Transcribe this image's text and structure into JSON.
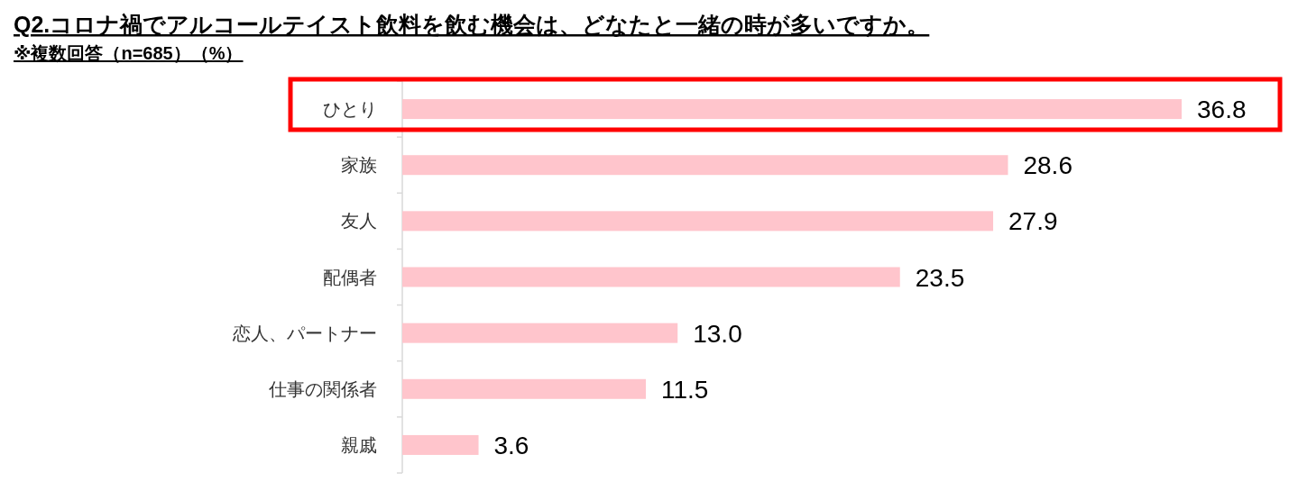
{
  "chart_data": {
    "type": "bar",
    "orientation": "horizontal",
    "title": "Q2.コロナ禍でアルコールテイスト飲料を飲む機会は、どなたと一緒の時が多いですか。",
    "subtitle": "※複数回答（n=685）（%）",
    "categories": [
      "ひとり",
      "家族",
      "友人",
      "配偶者",
      "恋人、パートナー",
      "仕事の関係者",
      "親戚"
    ],
    "values": [
      36.8,
      28.6,
      27.9,
      23.5,
      13.0,
      11.5,
      3.6
    ],
    "value_labels": [
      "36.8",
      "28.6",
      "27.9",
      "23.5",
      "13.0",
      "11.5",
      "3.6"
    ],
    "color": "#ffc5cc"
  }
}
